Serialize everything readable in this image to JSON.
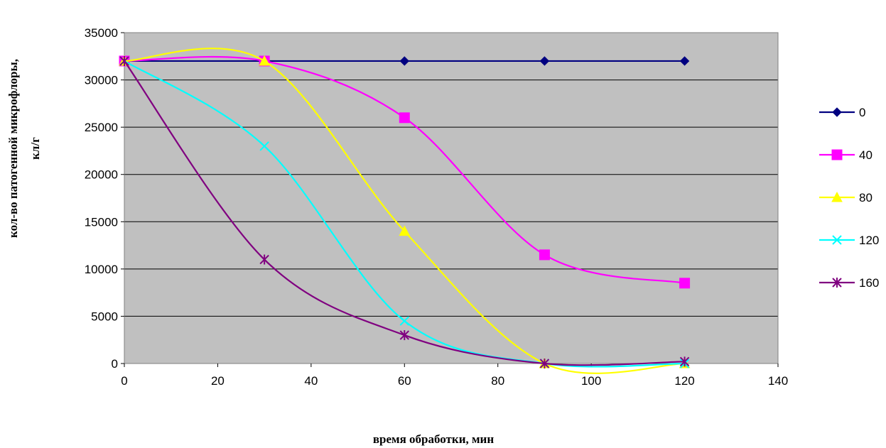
{
  "chart_data": {
    "type": "line",
    "title": "",
    "xlabel": "время обработки, мин",
    "ylabel_line1": "кол-во патогенной микрофлоры,",
    "ylabel_line2": "кл/г",
    "xlim": [
      0,
      140
    ],
    "ylim": [
      0,
      35000
    ],
    "x_ticks": [
      "0",
      "20",
      "40",
      "60",
      "80",
      "100",
      "120",
      "140"
    ],
    "y_ticks": [
      "0",
      "5000",
      "10000",
      "15000",
      "20000",
      "25000",
      "30000",
      "35000"
    ],
    "grid": true,
    "plot_background": "#c0c0c0",
    "legend_position": "right",
    "x": [
      0,
      30,
      60,
      90,
      120
    ],
    "series": [
      {
        "name": "0",
        "values": [
          32000,
          32000,
          32000,
          32000,
          32000
        ],
        "color": "#000080",
        "marker": "diamond"
      },
      {
        "name": "40",
        "values": [
          32000,
          32000,
          26000,
          11500,
          8500
        ],
        "color": "#ff00ff",
        "marker": "square"
      },
      {
        "name": "80",
        "values": [
          32000,
          32000,
          14000,
          0,
          0
        ],
        "color": "#ffff00",
        "marker": "triangle"
      },
      {
        "name": "120",
        "values": [
          32000,
          23000,
          4500,
          0,
          0
        ],
        "color": "#00ffff",
        "marker": "x"
      },
      {
        "name": "160",
        "values": [
          32000,
          11000,
          3000,
          0,
          200
        ],
        "color": "#800080",
        "marker": "star"
      }
    ]
  }
}
